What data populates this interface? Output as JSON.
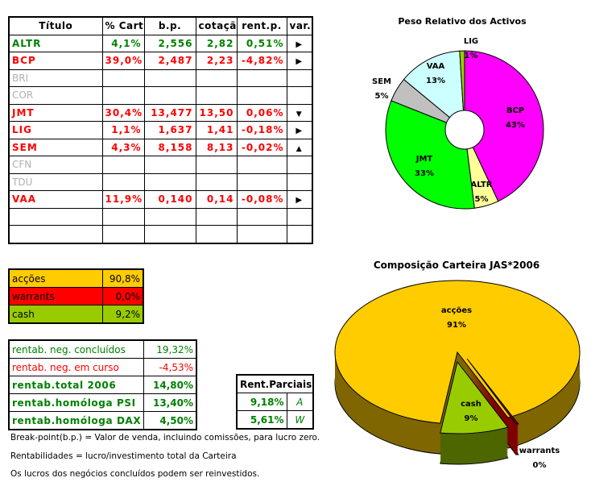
{
  "main_table": {
    "headers": [
      "Título",
      "% Cart",
      "b.p.",
      "cotação",
      "rent.p.",
      "var."
    ],
    "rows": [
      {
        "titulo": "ALTR",
        "cart": "4,1%",
        "bp": "2,556",
        "cotacao": "2,82",
        "rent": "0,51%",
        "var": "right",
        "color": "green"
      },
      {
        "titulo": "BCP",
        "cart": "39,0%",
        "bp": "2,487",
        "cotacao": "2,23",
        "rent": "-4,82%",
        "var": "right",
        "color": "red"
      },
      {
        "titulo": "BRI",
        "cart": "",
        "bp": "",
        "cotacao": "",
        "rent": "",
        "var": "",
        "color": "grey"
      },
      {
        "titulo": "COR",
        "cart": "",
        "bp": "",
        "cotacao": "",
        "rent": "",
        "var": "",
        "color": "grey"
      },
      {
        "titulo": "JMT",
        "cart": "30,4%",
        "bp": "13,477",
        "cotacao": "13,50",
        "rent": "0,06%",
        "var": "down",
        "color": "red"
      },
      {
        "titulo": "LIG",
        "cart": "1,1%",
        "bp": "1,637",
        "cotacao": "1,41",
        "rent": "-0,18%",
        "var": "right",
        "color": "red"
      },
      {
        "titulo": "SEM",
        "cart": "4,3%",
        "bp": "8,158",
        "cotacao": "8,13",
        "rent": "-0,02%",
        "var": "up",
        "color": "red"
      },
      {
        "titulo": "CFN",
        "cart": "",
        "bp": "",
        "cotacao": "",
        "rent": "",
        "var": "",
        "color": "grey"
      },
      {
        "titulo": "TDU",
        "cart": "",
        "bp": "",
        "cotacao": "",
        "rent": "",
        "var": "",
        "color": "grey"
      },
      {
        "titulo": "VAA",
        "cart": "11,9%",
        "bp": "0,140",
        "cotacao": "0,14",
        "rent": "-0,08%",
        "var": "right",
        "color": "red"
      },
      {
        "titulo": "",
        "cart": "",
        "bp": "",
        "cotacao": "",
        "rent": "",
        "var": "",
        "color": "grey"
      },
      {
        "titulo": "",
        "cart": "",
        "bp": "",
        "cotacao": "",
        "rent": "",
        "var": "",
        "color": "grey"
      }
    ]
  },
  "allocation": [
    {
      "label": "acções",
      "value": "90,8%",
      "bg": "#ffcc00"
    },
    {
      "label": "warrants",
      "value": "0,0%",
      "bg": "#ff0000"
    },
    {
      "label": "cash",
      "value": "9,2%",
      "bg": "#99cc00"
    }
  ],
  "rentab": [
    {
      "label": "rentab. neg. concluídos",
      "value": "19,32%",
      "color": "green",
      "bold": false
    },
    {
      "label": "rentab. neg. em curso",
      "value": "-4,53%",
      "color": "red",
      "bold": false
    },
    {
      "label": "rentab.total 2006",
      "value": "14,80%",
      "color": "green",
      "bold": true
    },
    {
      "label": "rentab.homóloga PSI",
      "value": "13,40%",
      "color": "green",
      "bold": true
    },
    {
      "label": "rentab.homóloga DAX",
      "value": "4,50%",
      "color": "green",
      "bold": true
    }
  ],
  "rent_parciais": {
    "title": "Rent.Parciais",
    "rows": [
      {
        "value": "9,18%",
        "code": "A"
      },
      {
        "value": "5,61%",
        "code": "W"
      }
    ]
  },
  "notes": [
    "Break-point(b.p.) = Valor de venda, incluindo comissões, para lucro zero.",
    "Rentabilidades = lucro/investimento total da Carteira",
    "Os lucros dos negócios concluídos podem ser reinvestidos."
  ],
  "chart_data": [
    {
      "type": "pie",
      "variant": "doughnut",
      "title": "Peso Relativo dos Activos",
      "categories": [
        "BCP",
        "ALTR",
        "JMT",
        "SEM",
        "VAA",
        "LIG"
      ],
      "values": [
        43,
        5,
        33,
        5,
        13,
        1
      ],
      "labels": [
        "43%",
        "5%",
        "33%",
        "5%",
        "13%",
        "1%"
      ],
      "colors": [
        "#ff00ff",
        "#ffff99",
        "#00ff00",
        "#c0c0c0",
        "#ccffff",
        "#99cc00"
      ]
    },
    {
      "type": "pie",
      "variant": "3d-exploded",
      "title": "Composição Carteira JAS*2006",
      "categories": [
        "acções",
        "warrants",
        "cash"
      ],
      "values": [
        91,
        0,
        9
      ],
      "labels": [
        "91%",
        "0%",
        "9%"
      ],
      "colors": [
        "#ffcc00",
        "#800000",
        "#99cc00"
      ]
    }
  ]
}
